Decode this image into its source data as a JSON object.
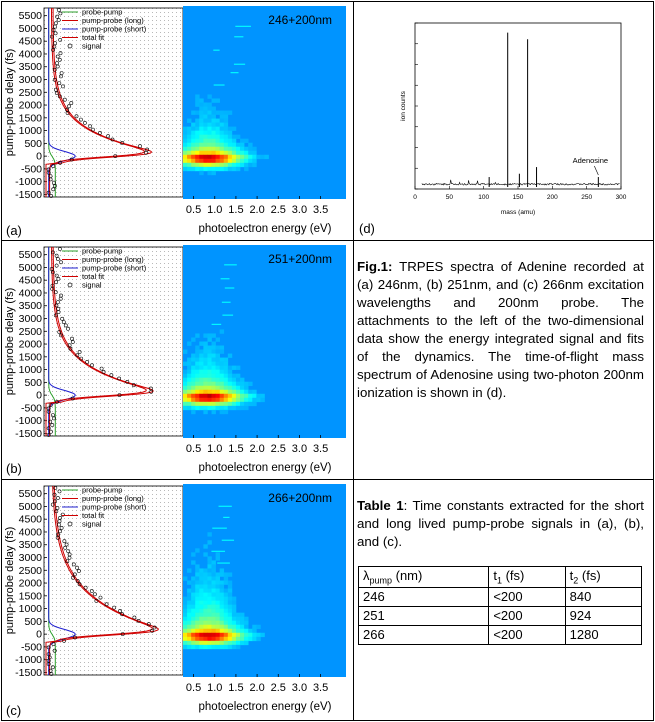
{
  "panels": [
    {
      "label": "(a)",
      "tag": "246+200nm",
      "legend": [
        "probe-pump",
        "pump-probe (long)",
        "pump-probe (short)",
        "total fit",
        "signal"
      ]
    },
    {
      "label": "(b)",
      "tag": "251+200nm",
      "legend": [
        "probe-pump",
        "pump-probe (long)",
        "pump-probe (short)",
        "total fit",
        "signal"
      ]
    },
    {
      "label": "(c)",
      "tag": "266+200nm",
      "legend": [
        "probe-pump",
        "pump-probe (long)",
        "pump-probe (short)",
        "total fit",
        "signal"
      ]
    }
  ],
  "y_axis_label": "pump-probe delay (fs)",
  "y_ticks": [
    "5500",
    "5000",
    "4500",
    "4000",
    "3500",
    "3000",
    "2500",
    "2000",
    "1500",
    "1000",
    "500",
    "0",
    "-500",
    "-1000",
    "-1500"
  ],
  "x_axis_label": "photoelectron energy (eV)",
  "x_ticks": [
    "0.5",
    "1.0",
    "1.5",
    "2.0",
    "2.5",
    "3.0",
    "3.5"
  ],
  "mass_spec": {
    "label": "(d)",
    "ylabel": "ion counts",
    "xlabel": "mass (amu)",
    "x_ticks": [
      "0",
      "50",
      "100",
      "150",
      "200",
      "250",
      "300"
    ],
    "annotation": "Adenosine"
  },
  "fig_caption": {
    "bold": "Fig.1:",
    "text": " TRPES spectra of Adenine recorded at (a) 246nm, (b) 251nm, and (c) 266nm excitation wavelengths and 200nm probe. The attachments to the left of the two-dimensional data show the energy integrated signal and fits of the dynamics. The time-of-flight mass spectrum of Adenosine using two-photon 200nm ionization is shown in (d)."
  },
  "table_caption": {
    "bold": "Table 1",
    "text": ": Time constants extracted for the short and long lived pump-probe signals in (a), (b), and (c)."
  },
  "table": {
    "headers": [
      "λ",
      "pump",
      " (nm)",
      "t",
      "1",
      " (fs)",
      "t",
      "2",
      " (fs)"
    ],
    "rows": [
      [
        "246",
        "<200",
        "840"
      ],
      [
        "251",
        "<200",
        "924"
      ],
      [
        "266",
        "<200",
        "1280"
      ]
    ]
  },
  "chart_data": [
    {
      "type": "line",
      "title": "246+200nm",
      "xlabel": "photoelectron energy (eV)",
      "ylabel": "pump-probe delay (fs)",
      "ylim": [
        -1600,
        5800
      ],
      "series": [
        {
          "name": "probe-pump"
        },
        {
          "name": "pump-probe (long)",
          "tau_fs": 840
        },
        {
          "name": "pump-probe (short)",
          "tau_fs": "<200"
        },
        {
          "name": "total fit"
        },
        {
          "name": "signal"
        }
      ]
    },
    {
      "type": "line",
      "title": "251+200nm",
      "xlabel": "photoelectron energy (eV)",
      "ylabel": "pump-probe delay (fs)",
      "ylim": [
        -1600,
        5800
      ],
      "series": [
        {
          "name": "probe-pump"
        },
        {
          "name": "pump-probe (long)",
          "tau_fs": 924
        },
        {
          "name": "pump-probe (short)",
          "tau_fs": "<200"
        },
        {
          "name": "total fit"
        },
        {
          "name": "signal"
        }
      ]
    },
    {
      "type": "line",
      "title": "266+200nm",
      "xlabel": "photoelectron energy (eV)",
      "ylabel": "pump-probe delay (fs)",
      "ylim": [
        -1600,
        5800
      ],
      "series": [
        {
          "name": "probe-pump"
        },
        {
          "name": "pump-probe (long)",
          "tau_fs": 1280
        },
        {
          "name": "pump-probe (short)",
          "tau_fs": "<200"
        },
        {
          "name": "total fit"
        },
        {
          "name": "signal"
        }
      ]
    },
    {
      "type": "bar",
      "title": "mass spectrum",
      "xlabel": "mass (amu)",
      "ylabel": "ion counts",
      "xlim": [
        0,
        300
      ],
      "peaks": [
        {
          "x": 135,
          "rel": 0.93
        },
        {
          "x": 164,
          "rel": 0.89
        },
        {
          "x": 152,
          "rel": 0.08
        },
        {
          "x": 177,
          "rel": 0.12
        },
        {
          "x": 108,
          "rel": 0.06
        },
        {
          "x": 267,
          "rel": 0.06
        }
      ]
    }
  ]
}
